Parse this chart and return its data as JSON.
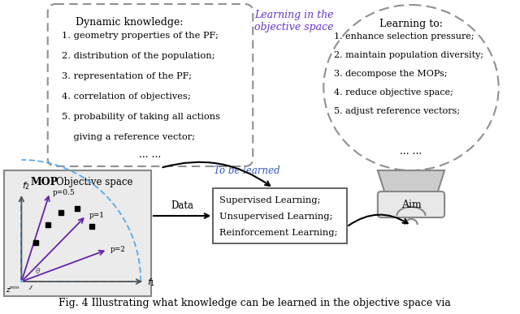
{
  "title": "Fig. 4 Illustrating what knowledge can be learned in the objective space via",
  "left_box_title": "Dynamic knowledge:",
  "left_box_items": [
    "1. geometry properties of the PF;",
    "2. distribution of the population;",
    "3. representation of the PF;",
    "4. correlation of objectives;",
    "5. probability of taking all actions",
    "    giving a reference vector;"
  ],
  "left_box_ellipsis": "... ...",
  "right_box_title": "Learning to:",
  "right_box_items": [
    "1. enhance selection pressure;",
    "2. maintain population diversity;",
    "3. decompose the MOPs;",
    "4. reduce objective space;",
    "5. adjust reference vectors;"
  ],
  "right_box_ellipsis": "... ...",
  "middle_box_items": [
    "Supervised Learning;",
    "Unsupervised Learning;",
    "Reinforcement Learning;"
  ],
  "top_label": "Learning in the\nobjective space",
  "arrow_label": "To be learned",
  "data_label": "Data",
  "aim_label": "Aim",
  "bg_color": "#ffffff",
  "dashed_color": "#909090",
  "text_color": "#000000",
  "top_label_color": "#6633cc",
  "arrow_label_color": "#3355cc"
}
